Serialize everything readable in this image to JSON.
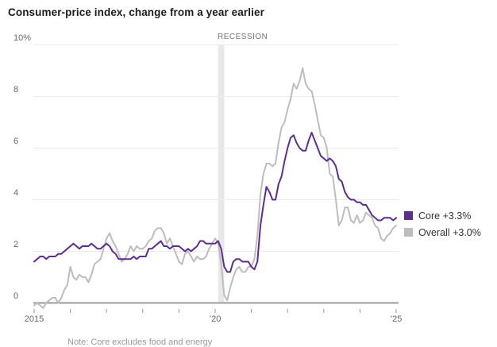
{
  "title": "Consumer-price index, change from a year earlier",
  "recession_label": "RECESSION",
  "legend": [
    {
      "label": "Core +3.3%",
      "color": "#5c2e91"
    },
    {
      "label": "Overall +3.0%",
      "color": "#bdbdbd"
    }
  ],
  "footnote_partial": "Note: Core excludes food and energy",
  "colors": {
    "core_line": "#5c2e91",
    "overall_line": "#bdbdbd",
    "gridline": "#ececec",
    "zero_axis": "#9b9b9b",
    "recession_band": "#e8e8e8",
    "tick": "#999999"
  },
  "chart_data": {
    "type": "line",
    "title": "Consumer-price index, change from a year earlier",
    "frequency": "monthly",
    "start": "2015-01",
    "end": "2025-01",
    "ylim": [
      0,
      10
    ],
    "grid": true,
    "legend_position": "right",
    "yticks": [
      {
        "value": 10,
        "label": "10%"
      },
      {
        "value": 8,
        "label": "8"
      },
      {
        "value": 6,
        "label": "6"
      },
      {
        "value": 4,
        "label": "4"
      },
      {
        "value": 2,
        "label": "2"
      },
      {
        "value": 0,
        "label": "0"
      }
    ],
    "xticks": [
      {
        "year": 2015,
        "label": "2015"
      },
      {
        "year": 2016,
        "label": ""
      },
      {
        "year": 2017,
        "label": ""
      },
      {
        "year": 2018,
        "label": ""
      },
      {
        "year": 2019,
        "label": ""
      },
      {
        "year": 2020,
        "label": "’20"
      },
      {
        "year": 2021,
        "label": ""
      },
      {
        "year": 2022,
        "label": ""
      },
      {
        "year": 2023,
        "label": ""
      },
      {
        "year": 2024,
        "label": ""
      },
      {
        "year": 2025,
        "label": "’25"
      }
    ],
    "recession_band": {
      "start": "2020-02",
      "end": "2020-04"
    },
    "series": [
      {
        "name": "Core",
        "latest": "+3.3%",
        "color": "#5c2e91",
        "values": [
          1.6,
          1.7,
          1.8,
          1.8,
          1.7,
          1.8,
          1.8,
          1.8,
          1.9,
          1.9,
          2.0,
          2.1,
          2.2,
          2.3,
          2.2,
          2.1,
          2.2,
          2.2,
          2.2,
          2.3,
          2.2,
          2.1,
          2.1,
          2.2,
          2.3,
          2.2,
          2.0,
          1.9,
          1.7,
          1.7,
          1.7,
          1.7,
          1.7,
          1.8,
          1.7,
          1.8,
          1.8,
          1.8,
          2.1,
          2.1,
          2.2,
          2.3,
          2.4,
          2.2,
          2.2,
          2.1,
          2.2,
          2.2,
          2.2,
          2.1,
          2.0,
          2.1,
          2.0,
          2.1,
          2.2,
          2.4,
          2.4,
          2.3,
          2.3,
          2.3,
          2.3,
          2.4,
          2.1,
          1.4,
          1.2,
          1.2,
          1.6,
          1.7,
          1.7,
          1.6,
          1.6,
          1.6,
          1.4,
          1.3,
          1.6,
          3.0,
          3.8,
          4.5,
          4.3,
          4.0,
          4.0,
          4.6,
          4.9,
          5.5,
          6.0,
          6.4,
          6.5,
          6.2,
          6.0,
          5.9,
          5.9,
          6.3,
          6.6,
          6.3,
          6.0,
          5.7,
          5.6,
          5.5,
          5.6,
          5.5,
          5.3,
          4.8,
          4.7,
          4.3,
          4.1,
          4.0,
          4.0,
          3.9,
          3.9,
          3.8,
          3.8,
          3.6,
          3.4,
          3.3,
          3.2,
          3.2,
          3.3,
          3.3,
          3.3,
          3.2,
          3.3
        ]
      },
      {
        "name": "Overall",
        "latest": "+3.0%",
        "color": "#bdbdbd",
        "values": [
          -0.1,
          0.0,
          -0.1,
          -0.2,
          0.0,
          0.1,
          0.2,
          0.2,
          0.0,
          0.2,
          0.5,
          0.7,
          1.4,
          1.0,
          0.9,
          1.1,
          1.0,
          1.0,
          0.8,
          1.1,
          1.5,
          1.6,
          1.7,
          2.1,
          2.5,
          2.7,
          2.4,
          2.2,
          1.9,
          1.6,
          1.7,
          1.9,
          2.2,
          2.0,
          2.2,
          2.1,
          2.1,
          2.2,
          2.4,
          2.5,
          2.8,
          2.9,
          2.9,
          2.7,
          2.3,
          2.5,
          2.2,
          1.9,
          1.6,
          1.5,
          1.9,
          2.0,
          1.8,
          1.6,
          1.8,
          1.7,
          1.7,
          1.8,
          2.1,
          2.3,
          2.5,
          2.3,
          1.5,
          0.3,
          0.1,
          0.6,
          1.0,
          1.3,
          1.4,
          1.2,
          1.2,
          1.4,
          1.4,
          1.7,
          2.6,
          4.2,
          5.0,
          5.4,
          5.4,
          5.3,
          5.4,
          6.2,
          6.8,
          7.0,
          7.5,
          7.9,
          8.5,
          8.3,
          8.6,
          9.1,
          8.5,
          8.3,
          8.2,
          7.7,
          7.1,
          6.5,
          6.4,
          6.0,
          5.0,
          4.9,
          4.0,
          3.0,
          3.2,
          3.7,
          3.7,
          3.2,
          3.1,
          3.4,
          3.1,
          3.2,
          3.5,
          3.4,
          3.3,
          3.0,
          2.9,
          2.5,
          2.4,
          2.6,
          2.7,
          2.9,
          3.0
        ]
      }
    ]
  }
}
